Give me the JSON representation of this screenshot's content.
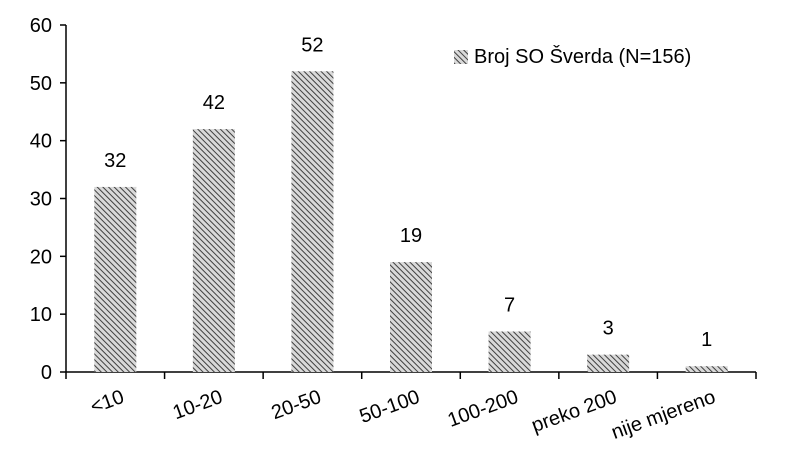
{
  "chart_data": {
    "type": "bar",
    "title": "",
    "xlabel": "",
    "ylabel": "",
    "categories": [
      "<10",
      "10-20",
      "20-50",
      "50-100",
      "100-200",
      "preko 200",
      "nije mjereno"
    ],
    "series": [
      {
        "name": "Broj SO Šverda (N=156)",
        "values": [
          32,
          42,
          52,
          19,
          7,
          3,
          1
        ]
      }
    ],
    "data_labels": [
      "32",
      "42",
      "52",
      "19",
      "7",
      "3",
      "1"
    ],
    "ylim": [
      0,
      60
    ],
    "yticks": [
      0,
      10,
      20,
      30,
      40,
      50,
      60
    ],
    "grid": false,
    "legend_position": "top-right",
    "bar_pattern": "diagonal-hatch",
    "colors": {
      "bar_fill": "#d9d9d9",
      "bar_hatch": "#404040",
      "axis": "#000000"
    }
  }
}
